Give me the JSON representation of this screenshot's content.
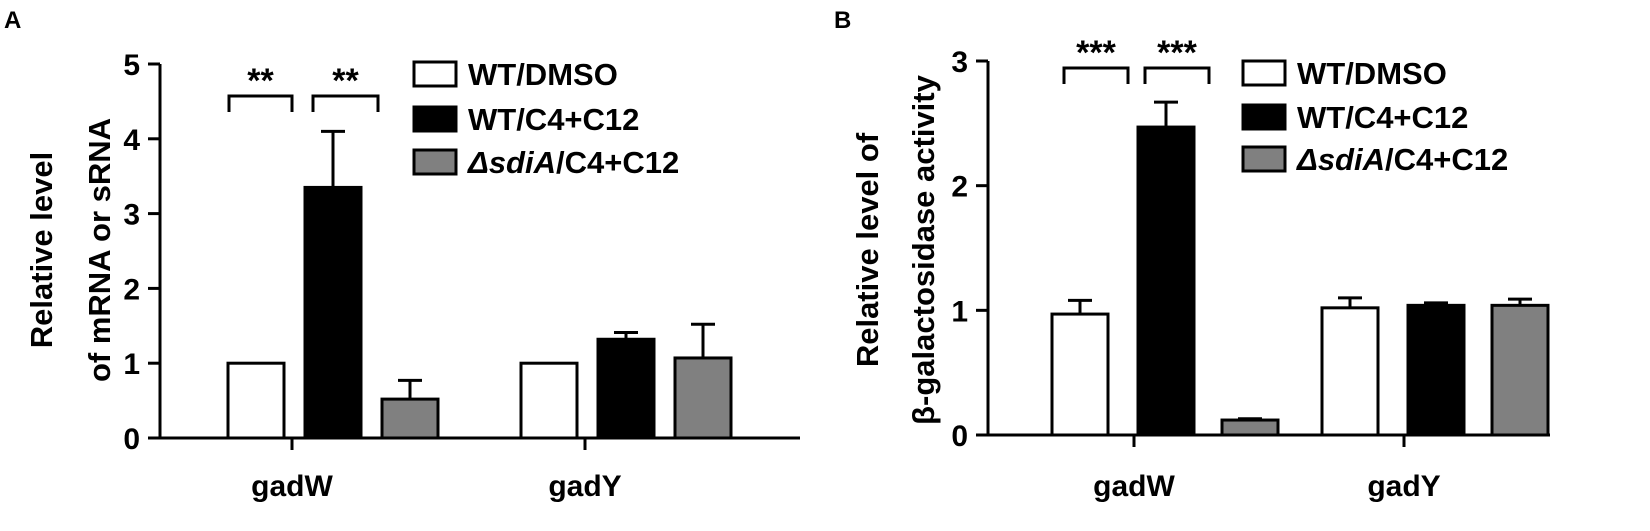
{
  "chart_data": [
    {
      "panel_letter": "A",
      "type": "bar",
      "ylabel_lines": [
        "Relative level",
        "of mRNA or sRNA"
      ],
      "xlabel": "",
      "categories": [
        "gadW",
        "gadY"
      ],
      "ylim": [
        0,
        5
      ],
      "yticks": [
        "0",
        "1",
        "2",
        "3",
        "4",
        "5"
      ],
      "legend_position": "top-right",
      "series": [
        {
          "name": "WT/DMSO",
          "legend_prefix": "",
          "legend_italic": "",
          "legend_suffix": "WT/DMSO",
          "fill": "#ffffff",
          "values": [
            1.0,
            1.0
          ],
          "errors": [
            0,
            0
          ]
        },
        {
          "name": "WT/C4+C12",
          "legend_prefix": "",
          "legend_italic": "",
          "legend_suffix": "WT/C4+C12",
          "fill": "#000000",
          "values": [
            3.35,
            1.32
          ],
          "errors": [
            0.75,
            0.09
          ]
        },
        {
          "name": "ΔsdiA/C4+C12",
          "legend_prefix": "",
          "legend_italic": "ΔsdiA",
          "legend_suffix": "/C4+C12",
          "fill": "#808080",
          "values": [
            0.52,
            1.07
          ],
          "errors": [
            0.25,
            0.45
          ]
        }
      ],
      "significance": [
        {
          "category": "gadW",
          "from_series": 0,
          "to_series": 1,
          "label": "**"
        },
        {
          "category": "gadW",
          "from_series": 1,
          "to_series": 2,
          "label": "**"
        }
      ]
    },
    {
      "panel_letter": "B",
      "type": "bar",
      "ylabel_lines": [
        "Relative level of",
        "β-galactosidase activity"
      ],
      "xlabel": "",
      "categories": [
        "gadW",
        "gadY"
      ],
      "ylim": [
        0,
        3
      ],
      "yticks": [
        "0",
        "1",
        "2",
        "3"
      ],
      "legend_position": "top-right",
      "series": [
        {
          "name": "WT/DMSO",
          "legend_prefix": "",
          "legend_italic": "",
          "legend_suffix": "WT/DMSO",
          "fill": "#ffffff",
          "values": [
            0.97,
            1.02
          ],
          "errors": [
            0.11,
            0.08
          ]
        },
        {
          "name": "WT/C4+C12",
          "legend_prefix": "",
          "legend_italic": "",
          "legend_suffix": "WT/C4+C12",
          "fill": "#000000",
          "values": [
            2.47,
            1.04
          ],
          "errors": [
            0.2,
            0.02
          ]
        },
        {
          "name": "ΔsdiA/C4+C12",
          "legend_prefix": "",
          "legend_italic": "ΔsdiA",
          "legend_suffix": "/C4+C12",
          "fill": "#808080",
          "values": [
            0.12,
            1.04
          ],
          "errors": [
            0.01,
            0.05
          ]
        }
      ],
      "significance": [
        {
          "category": "gadW",
          "from_series": 0,
          "to_series": 1,
          "label": "***"
        },
        {
          "category": "gadW",
          "from_series": 1,
          "to_series": 2,
          "label": "***"
        }
      ]
    }
  ]
}
